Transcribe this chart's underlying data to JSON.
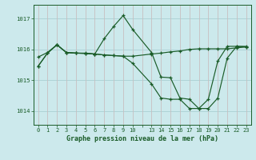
{
  "title": "Graphe pression niveau de la mer (hPa)",
  "background_color": "#cce9ec",
  "grid_color_h": "#aacfd4",
  "grid_color_v": "#c8bfc0",
  "line_color": "#1a5c28",
  "ylim": [
    1013.55,
    1017.45
  ],
  "ytick_values": [
    1014,
    1015,
    1016,
    1017
  ],
  "xtick_labels": [
    "0",
    "1",
    "2",
    "3",
    "4",
    "5",
    "6",
    "7",
    "8",
    "9",
    "10",
    "",
    "13",
    "14",
    "15",
    "16",
    "17",
    "18",
    "19",
    "20",
    "21",
    "22",
    "23"
  ],
  "series": [
    {
      "x": [
        0,
        1,
        2,
        3,
        4,
        5,
        6,
        7,
        8,
        9,
        10,
        13,
        14,
        15,
        16,
        17,
        18,
        19,
        20,
        21,
        22,
        23
      ],
      "y": [
        1015.75,
        1015.9,
        1016.15,
        1015.9,
        1015.88,
        1015.88,
        1015.85,
        1016.35,
        1016.75,
        1017.1,
        1016.65,
        1015.9,
        1015.1,
        1015.08,
        1014.42,
        1014.38,
        1014.08,
        1014.08,
        1014.42,
        1015.72,
        1016.1,
        1016.1
      ]
    },
    {
      "x": [
        0,
        1,
        2,
        3,
        4,
        5,
        6,
        7,
        8,
        9,
        10,
        13,
        14,
        15,
        16,
        17,
        18,
        19,
        20,
        21,
        22,
        23
      ],
      "y": [
        1015.45,
        1015.88,
        1016.15,
        1015.9,
        1015.88,
        1015.87,
        1015.85,
        1015.82,
        1015.8,
        1015.78,
        1015.78,
        1015.85,
        1015.88,
        1015.92,
        1015.95,
        1016.0,
        1016.02,
        1016.02,
        1016.02,
        1016.02,
        1016.05,
        1016.08
      ]
    },
    {
      "x": [
        0,
        1,
        2,
        3,
        4,
        5,
        6,
        7,
        8,
        9,
        10,
        13,
        14,
        15,
        16,
        17,
        18,
        19,
        20,
        21,
        22,
        23
      ],
      "y": [
        1015.45,
        1015.88,
        1016.15,
        1015.9,
        1015.88,
        1015.87,
        1015.85,
        1015.82,
        1015.8,
        1015.78,
        1015.55,
        1014.88,
        1014.42,
        1014.38,
        1014.38,
        1014.08,
        1014.08,
        1014.38,
        1015.62,
        1016.1,
        1016.1,
        1016.08
      ]
    }
  ]
}
